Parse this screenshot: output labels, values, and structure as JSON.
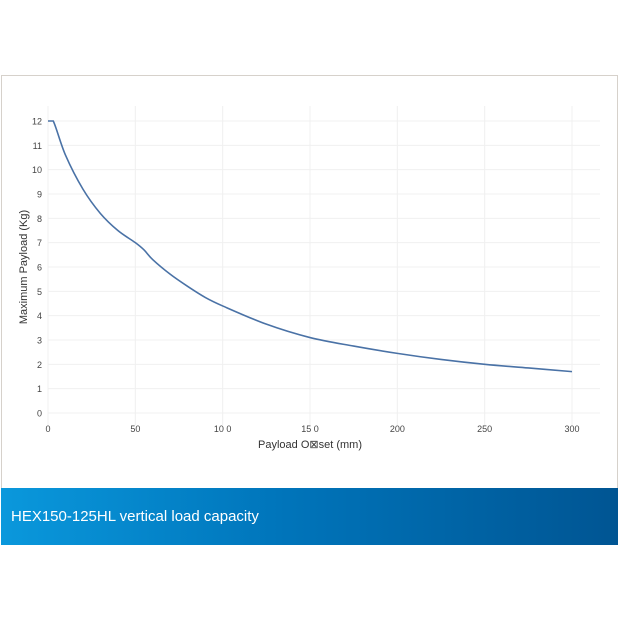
{
  "banner": {
    "title": "HEX150-125HL vertical load capacity"
  },
  "colors": {
    "line": "#4a72a6",
    "grid": "#f0f0f0",
    "banner_start": "#0a98dc",
    "banner_end": "#005593"
  },
  "chart_data": {
    "type": "line",
    "title": "",
    "xlabel": "Payload O⊠set (mm)",
    "ylabel": "Maximum Payload (Kg)",
    "xlim": [
      0,
      300
    ],
    "ylim": [
      0,
      12
    ],
    "xticks": [
      0,
      50,
      100,
      150,
      200,
      250,
      300
    ],
    "xtick_labels": [
      "0",
      "50",
      "10 0",
      "15 0",
      "200",
      "250",
      "300"
    ],
    "yticks": [
      0,
      1,
      2,
      3,
      4,
      5,
      6,
      7,
      8,
      9,
      10,
      11,
      12
    ],
    "ytick_labels": [
      "0",
      "1",
      "2",
      "3",
      "4",
      "5",
      "6",
      "7",
      "8",
      "9",
      "10",
      "11",
      "12"
    ],
    "grid": true,
    "series": [
      {
        "name": "Maximum Payload",
        "x": [
          0,
          3,
          10,
          20,
          30,
          40,
          50,
          55,
          60,
          70,
          80,
          90,
          100,
          125,
          150,
          175,
          200,
          225,
          250,
          275,
          300
        ],
        "y": [
          12,
          12,
          10.6,
          9.2,
          8.2,
          7.5,
          7.0,
          6.7,
          6.3,
          5.7,
          5.2,
          4.75,
          4.4,
          3.65,
          3.1,
          2.75,
          2.45,
          2.2,
          2.0,
          1.85,
          1.7
        ]
      }
    ]
  }
}
